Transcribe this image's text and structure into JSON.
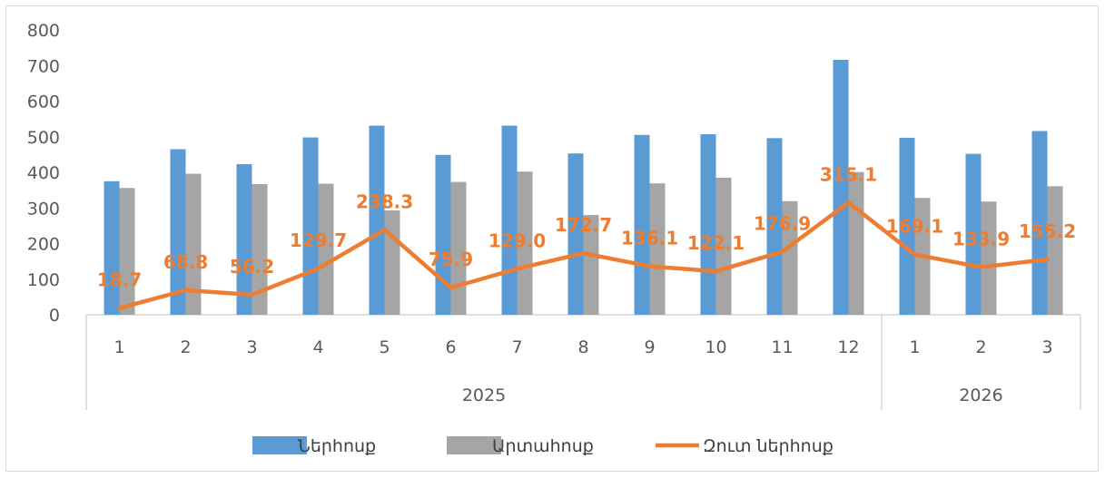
{
  "chart_data": {
    "type": "bar",
    "categories": [
      "1",
      "2",
      "3",
      "4",
      "5",
      "6",
      "7",
      "8",
      "9",
      "10",
      "11",
      "12",
      "1",
      "2",
      "3"
    ],
    "category_groups": [
      {
        "label": "2025",
        "count": 12
      },
      {
        "label": "2026",
        "count": 3
      }
    ],
    "series": [
      {
        "name": "Ներհոսք",
        "kind": "bar",
        "color": "#5b9bd5",
        "values": [
          375,
          465,
          423,
          498,
          531,
          449,
          531,
          453,
          505,
          507,
          496,
          716,
          497,
          452,
          516
        ]
      },
      {
        "name": "Արտահոսք",
        "kind": "bar",
        "color": "#a5a5a5",
        "values": [
          356,
          396,
          367,
          368,
          293,
          373,
          402,
          280,
          369,
          385,
          319,
          401,
          328,
          318,
          361
        ]
      },
      {
        "name": "Զուտ ներհոսք",
        "kind": "line",
        "color": "#ed7d31",
        "values": [
          18.7,
          68.8,
          56.2,
          129.7,
          238.3,
          75.9,
          129.0,
          172.7,
          136.1,
          122.1,
          176.9,
          315.1,
          169.1,
          133.9,
          155.2
        ],
        "labels": [
          "18.7",
          "68.8",
          "56.2",
          "129.7",
          "238.3",
          "75.9",
          "129.0",
          "172.7",
          "136.1",
          "122.1",
          "176.9",
          "315.1",
          "169.1",
          "133.9",
          "155.2"
        ]
      }
    ],
    "yticks": [
      "0",
      "100",
      "200",
      "300",
      "400",
      "500",
      "600",
      "700",
      "800"
    ],
    "ylim": [
      0,
      800
    ],
    "grid": false,
    "legend_position": "bottom",
    "title": "",
    "xlabel": "",
    "ylabel": ""
  }
}
